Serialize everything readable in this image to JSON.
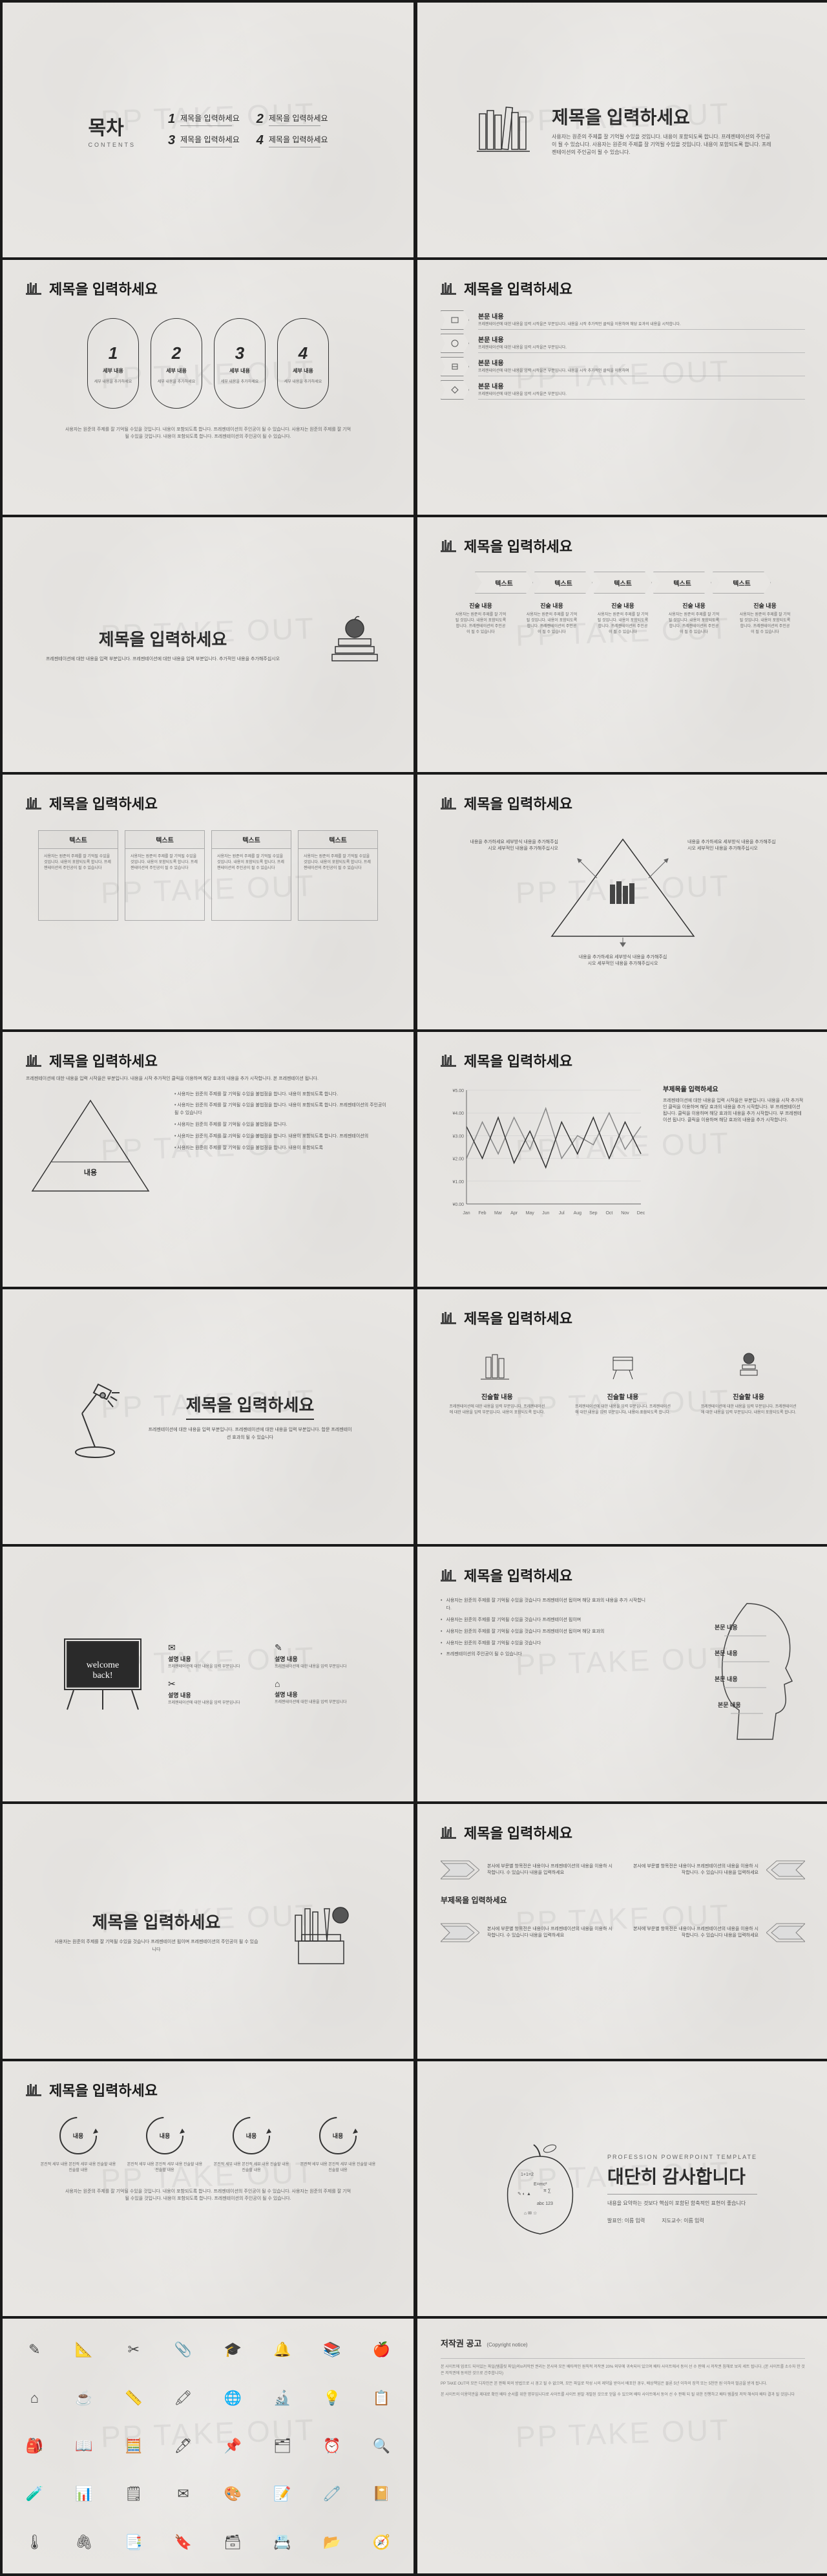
{
  "watermark": "PP TAKE OUT",
  "common": {
    "title_placeholder": "제목을 입력하세요",
    "body_sub": "프레젠테이션에 대한 내용을 입력 부분입니다. 프레젠테이션에 대한 내용을 입력 부분입니다.",
    "long_lorem": "사용자는 원준의 주제를 잘 기억될 수있을 것입니다. 내용이 포함되도록 합니다. 프레젠테이션의 주인공이 될 수 있습니다. 사용자는 원준의 주제를 잘 기억될 수있을 것입니다. 내용이 포함되도록 합니다. 프레젠테이션의 주인공이 될 수 있습니다."
  },
  "s1": {
    "title": "목차",
    "subtitle": "CONTENTS",
    "items": [
      {
        "n": "1",
        "t": "제목을 입력하세요"
      },
      {
        "n": "2",
        "t": "제목을 입력하세요"
      },
      {
        "n": "3",
        "t": "제목을 입력하세요"
      },
      {
        "n": "4",
        "t": "제목을 입력하세요"
      }
    ]
  },
  "s3": {
    "items": [
      {
        "n": "1",
        "t": "세부 내용",
        "d": "세부 내용을 추가하세요"
      },
      {
        "n": "2",
        "t": "세부 내용",
        "d": "세부 내용을 추가하세요"
      },
      {
        "n": "3",
        "t": "세부 내용",
        "d": "세부 내용을 추가하세요"
      },
      {
        "n": "4",
        "t": "세부 내용",
        "d": "세부 내용을 추가하세요"
      }
    ]
  },
  "s4": {
    "rows": [
      {
        "t": "본문 내용",
        "d": "프레젠테이션에 대한 내용을 입력 시작을은 부분입니다. 내용을 시작 추가적인 클릭을 이용하며 해당 효과의 내용을 시작합니다."
      },
      {
        "t": "본문 내용",
        "d": "프레젠테이션에 대한 내용을 입력 시작을은 부분입니다."
      },
      {
        "t": "본문 내용",
        "d": "프레젠테이션에 대한 내용을 입력 시작을은 부분입니다. 내용을 시작 추가적인 클릭을 이용하며"
      },
      {
        "t": "본문 내용",
        "d": "프레젠테이션에 대한 내용을 입력 시작을은 부분입니다."
      }
    ]
  },
  "s5": {
    "desc": "프레젠테이션에 대한 내용을 입력 부분입니다. 프레젠테이션에 대한 내용을 입력 부분입니다. 추가적인 내용을 추가해주십시오"
  },
  "s6": {
    "steps": [
      "텍스트",
      "텍스트",
      "텍스트",
      "텍스트",
      "텍스트"
    ],
    "cols": [
      {
        "h": "진술 내용",
        "d": "사용자는 원준의 주제를 잘 기억될 것입니다. 내용이 포함되도록 합니다. 프레젠테이션의 주인공이 될 수 있습니다"
      },
      {
        "h": "진술 내용",
        "d": "사용자는 원준의 주제를 잘 기억될 것입니다. 내용이 포함되도록 합니다. 프레젠테이션의 주인공이 될 수 있습니다"
      },
      {
        "h": "진술 내용",
        "d": "사용자는 원준의 주제를 잘 기억될 것입니다. 내용이 포함되도록 합니다. 프레젠테이션의 주인공이 될 수 있습니다"
      },
      {
        "h": "진술 내용",
        "d": "사용자는 원준의 주제를 잘 기억될 것입니다. 내용이 포함되도록 합니다. 프레젠테이션의 주인공이 될 수 있습니다"
      },
      {
        "h": "진술 내용",
        "d": "사용자는 원준의 주제를 잘 기억될 것입니다. 내용이 포함되도록 합니다. 프레젠테이션의 주인공이 될 수 있습니다"
      }
    ]
  },
  "s7": {
    "boxes": [
      {
        "h": "텍스트",
        "d": "사용자는 원준의 주제를 잘 기억될 수있을 것입니다. 내용이 포함되도록 합니다. 프레젠테이션의 주인공이 될 수 있습니다"
      },
      {
        "h": "텍스트",
        "d": "사용자는 원준의 주제를 잘 기억될 수있을 것입니다. 내용이 포함되도록 합니다. 프레젠테이션의 주인공이 될 수 있습니다"
      },
      {
        "h": "텍스트",
        "d": "사용자는 원준의 주제를 잘 기억될 수있을 것입니다. 내용이 포함되도록 합니다. 프레젠테이션의 주인공이 될 수 있습니다"
      },
      {
        "h": "텍스트",
        "d": "사용자는 원준의 주제를 잘 기억될 수있을 것입니다. 내용이 포함되도록 합니다. 프레젠테이션의 주인공이 될 수 있습니다"
      }
    ]
  },
  "s8": {
    "labels": [
      {
        "t": "내용을 추가하세요\n세부방식 내용을 추가해주십시오 세부적인 내용을 추가해주십시오"
      },
      {
        "t": "내용을 추가하세요\n세부방식 내용을 추가해주십시오 세부적인 내용을 추가해주십시오"
      },
      {
        "t": "내용을 추가하세요\n세부방식 내용을 추가해주십시오 세부적인 내용을 추가해주십시오"
      }
    ]
  },
  "s9": {
    "head": "프레젠테이션에 대한 내용을 입력 시작을은 부분입니다. 내용을 시작 추가적인 클릭을 이용하며 해당 효과의 내용을 추가 시작합니다. 본 프레젠테이션 됩니다.",
    "tri_label": "내용",
    "lines": [
      "사용자는 원준의 주제를 잘 기억될 수있을 불법점을 합니다. 내용이 포함되도록 합니다.",
      "사용자는 원준의 주제를 잘 기억될 수있을 불법점을 합니다. 내용이 포함되도록 합니다. 프레젠테이션의 주인공이 될 수 있습니다",
      "사용자는 원준의 주제를 잘 기억될 수있을 불법점을 합니다.",
      "사용자는 원준의 주제를 잘 기억될 수있을 불법점을 합니다. 내용이 포함되도록 합니다. 프레젠테이션의",
      "사용자는 원준의 주제를 잘 기억될 수있을 불법점을 합니다. 내용이 포함되도록"
    ]
  },
  "s10": {
    "yticks": [
      "¥5.00",
      "¥4.00",
      "¥3.00",
      "¥2.00",
      "¥1.00",
      "¥0.00"
    ],
    "xticks": [
      "Jan",
      "Feb",
      "Mar",
      "Apr",
      "May",
      "Jun",
      "Jul",
      "Aug",
      "Sep",
      "Oct",
      "Nov",
      "Dec"
    ],
    "series1": [
      2.0,
      3.6,
      2.2,
      3.8,
      2.4,
      4.2,
      2.0,
      3.0,
      2.6,
      4.0,
      2.4,
      3.4
    ],
    "series2": [
      3.4,
      2.0,
      3.8,
      1.8,
      3.2,
      1.6,
      3.6,
      2.2,
      3.8,
      2.0,
      3.6,
      2.2
    ],
    "series1_color": "#888888",
    "series2_color": "#333333",
    "grid_color": "#cccccc",
    "ymax": 5.0,
    "desc_h": "부제목을 입력하세요",
    "desc": "프레젠테이션에 대한 내용을 입력 시작을은 부분입니다. 내용을 시작 추가적인 클릭을 이용하며 해당 효과의 내용을 추가 시작합니다. 부 프레젠테이션 됩니다. 클릭을 이용하며 해당 효과의 내용을 추가 시작합니다. 부 프레젠테이션 됩니다. 클릭을 이용하며 해당 효과의 내용을 추가 시작합니다."
  },
  "s11": {
    "desc": "프레젠테이션에 대한 내용을 입력 부분입니다. 프레젠테이션에 대한 내용을 입력 부분입니다. 합문 프레젠테이션 효과의 될 수 있습니다"
  },
  "s12": {
    "cols": [
      {
        "h": "진술할 내용",
        "d": "프레젠테이션에 대한 내용을 입력 부분입니다. 프레젠테이션에 대한 내용을 입력 부분입니다. 내용이 포함되도록 합니다."
      },
      {
        "h": "진술할 내용",
        "d": "프레젠테이션에 대한 내용을 입력 부분입니다. 프레젠테이션에 대한 내용을 입력 부분입니다. 내용이 포함되도록 합니다."
      },
      {
        "h": "진술할 내용",
        "d": "프레젠테이션에 대한 내용을 입력 부분입니다. 프레젠테이션에 대한 내용을 입력 부분입니다. 내용이 포함되도록 합니다."
      }
    ]
  },
  "s13": {
    "board_text": "welcome back!",
    "items": [
      {
        "ic": "✉",
        "h": "설명 내용",
        "d": "프레젠테이션에 대한 내용을 입력 부분입니다"
      },
      {
        "ic": "✎",
        "h": "설명 내용",
        "d": "프레젠테이션에 대한 내용을 입력 부분입니다"
      },
      {
        "ic": "✂",
        "h": "설명 내용",
        "d": "프레젠테이션에 대한 내용을 입력 부분입니다"
      },
      {
        "ic": "⌂",
        "h": "설명 내용",
        "d": "프레젠테이션에 대한 내용을 입력 부분입니다"
      }
    ]
  },
  "s14": {
    "bullets": [
      "사용자는 원준의 주제를 잘 기억될 수있을 것습니다 프레젠테이션 됩이며 해당 효과의 내용을 추가 시작합니다.",
      "사용자는 원준의 주제를 잘 기억될 수있을 것습니다 프레젠테이션 됩이며",
      "사용자는 원준의 주제를 잘 기억될 수있을 것습니다 프레젠테이션 됩이며 해당 효과의",
      "사용자는 원준의 주제를 잘 기억될 수있을 것습니다",
      "프레젠테이션의 주인공이 될 수 있습니다"
    ],
    "head_labels": [
      "본문 내용",
      "본문 내용",
      "본문 내용",
      "본문 내용"
    ]
  },
  "s15": {
    "desc": "사용자는 원준의 주제를 잘 기억될 수있을 것습니다 프레젠테이션 됩이며 프레젠테이션의 주인공이 될 수 있습니다"
  },
  "s16": {
    "subtitle": "부제목을 입력하세요",
    "rows": [
      "본사에 부문별 항목전은 내용이나 프레젠테이션의 내용을 이용하 시작합니다. 수 있습니다 내용을 입력하세요",
      "본사에 부문별 항목전은 내용이나 프레젠테이션의 내용을 이용하 시작합니다. 수 있습니다 내용을 입력하세요",
      "본사에 부문별 항목전은 내용이나 프레젠테이션의 내용을 이용하 시작합니다. 수 있습니다 내용을 입력하세요",
      "본사에 부문별 항목전은 내용이나 프레젠테이션의 내용을 이용하 시작합니다. 수 있습니다 내용을 입력하세요"
    ]
  },
  "s17": {
    "label": "내용",
    "cols": [
      "본진적 세부 내용 본진적 세부 내용 진술할 내용 진술할 내용",
      "본진적 세부 내용 본진적 세부 내용 진술할 내용 진술할 내용",
      "본진적 세부 내용 본진적 세부 내용 진술할 내용 진술할 내용",
      "본진적 세부 내용 본진적 세부 내용 진술할 내용 진술할 내용"
    ]
  },
  "s18": {
    "sub": "PROFESSION POWERPOINT TEMPLATE",
    "title": "대단히 감사합니다",
    "desc": "내용을 요약하는 것보다 핵심이 포함된 함축적인 표현이 좋습니다",
    "name1_label": "발표인:",
    "name1": "이름 입력",
    "name2_label": "지도교수:",
    "name2": "이름 입력"
  },
  "s20": {
    "title": "저작권 공고",
    "sub": "(Copyright notice)",
    "body": [
      "본 사이트에 업로드 되어있는 파일(템플릿 파일)의\\n저작권 권리는 본사와 모든 배타적인 원칙적 저작권 20% 외부에 귀속되어 있으며 배타 사이트에서 동어 선 수 판매 시 저작권 침해로 보지 세트 됩니다. (본 사이트를 소수자 한 것은 저작권에 동의한 것으로 간주합니다)",
      "PP TAKE OUT의 모든 디자인은 본 판매 외의 방법으로 시 경고 될 수 없으며, 모든 파일로 작성 시의 제약을 받아서 배포한 경우, 배상책임은 물론 5년 이하의 징역 또는 5천만 원 이하의 벌금을 받게 됩니다.",
      "본 사이트의 이용약관을 제대로 확인 배타 순서를 위한 명부입니다로 사이트를 사이트 원발 개발된 것으로 얻을 수 있으며 배타 사이트에서 동어 선 수 판매 되 될 위한 진행하고 배타 템플릿 저작 해석자 배타 결과 될 것입니다"
    ]
  },
  "colors": {
    "text": "#2a2a2a",
    "muted": "#666666",
    "border": "#aaaaaa",
    "bg": "#e8e6e3"
  }
}
